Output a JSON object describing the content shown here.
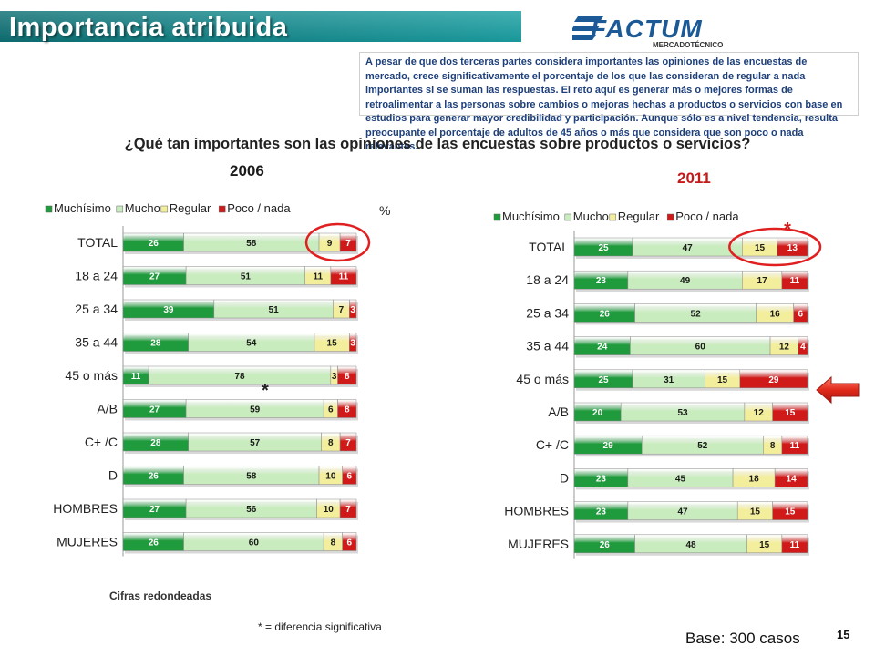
{
  "header": {
    "title": "Importancia atribuida",
    "brand": "FACTUM",
    "brand_sub": "MERCADOTÉCNICO"
  },
  "intro": "A pesar de que dos terceras partes considera importantes las opiniones de las encuestas de mercado, crece significativamente el porcentaje de los que las consideran de regular a nada importantes si se suman las respuestas. El reto aquí es generar más o mejores formas de retroalimentar a las personas sobre cambios o mejoras hechas a productos o servicios con base en estudios para generar mayor credibilidad y participación. Aunque sólo es a nivel tendencia, resulta preocupante el porcentaje de adultos de 45 años o más que considera que son poco o nada relevantes.",
  "question": "¿Qué tan importantes son las opiniones de las encuestas sobre productos o servicios?",
  "percent_sign": "%",
  "notes": {
    "rounded": "Cifras redondeadas",
    "significance": "* = diferencia significativa",
    "base": "Base: 300 casos",
    "page": "15"
  },
  "colors": {
    "muchisimo": "#1f9a3c",
    "mucho": "#c9ecbf",
    "regular": "#f3ee9c",
    "poco_nada": "#d01a1a",
    "title_teal": "#0f7b7e",
    "highlight_ring": "#e02020"
  },
  "chart_data": [
    {
      "type": "bar",
      "stacked": true,
      "orientation": "horizontal",
      "title": "2006",
      "categories": [
        "TOTAL",
        "18 a 24",
        "25 a 34",
        "35 a 44",
        "45 o más",
        "A/B",
        "C+ /C",
        "D",
        "HOMBRES",
        "MUJERES"
      ],
      "series": [
        {
          "name": "Muchísimo",
          "values": [
            26,
            27,
            39,
            28,
            11,
            27,
            28,
            26,
            27,
            26
          ]
        },
        {
          "name": "Mucho",
          "values": [
            58,
            51,
            51,
            54,
            78,
            59,
            57,
            58,
            56,
            60
          ]
        },
        {
          "name": "Regular",
          "values": [
            9,
            11,
            7,
            15,
            3,
            6,
            8,
            10,
            10,
            8
          ]
        },
        {
          "name": "Poco / nada",
          "values": [
            7,
            11,
            3,
            3,
            8,
            8,
            7,
            6,
            7,
            6
          ]
        }
      ],
      "annotations": [
        {
          "category": "TOTAL",
          "type": "circle",
          "series": [
            "Regular",
            "Poco / nada"
          ]
        },
        {
          "category": "45 o más",
          "type": "asterisk",
          "text": "*"
        }
      ],
      "legend": "top"
    },
    {
      "type": "bar",
      "stacked": true,
      "orientation": "horizontal",
      "title": "2011",
      "categories": [
        "TOTAL",
        "18 a 24",
        "25 a 34",
        "35 a 44",
        "45 o más",
        "A/B",
        "C+ /C",
        "D",
        "HOMBRES",
        "MUJERES"
      ],
      "series": [
        {
          "name": "Muchísimo",
          "values": [
            25,
            23,
            26,
            24,
            25,
            20,
            29,
            23,
            23,
            26
          ]
        },
        {
          "name": "Mucho",
          "values": [
            47,
            49,
            52,
            60,
            31,
            53,
            52,
            45,
            47,
            48
          ]
        },
        {
          "name": "Regular",
          "values": [
            15,
            17,
            16,
            12,
            15,
            12,
            8,
            18,
            15,
            15
          ]
        },
        {
          "name": "Poco / nada",
          "values": [
            13,
            11,
            6,
            4,
            29,
            15,
            11,
            14,
            15,
            11
          ]
        }
      ],
      "annotations": [
        {
          "category": "TOTAL",
          "type": "circle",
          "series": [
            "Regular",
            "Poco / nada"
          ],
          "text": "*"
        },
        {
          "category": "45 o más",
          "type": "arrow"
        }
      ],
      "legend": "top"
    }
  ]
}
